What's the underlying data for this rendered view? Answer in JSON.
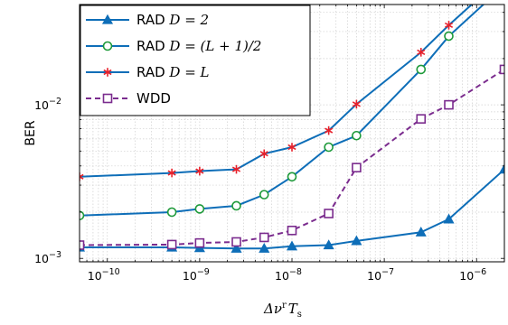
{
  "chart_data": {
    "type": "line",
    "xscale": "log",
    "yscale": "log",
    "xlim": [
      5e-11,
      2e-06
    ],
    "ylim": [
      0.00095,
      0.045
    ],
    "grid": true,
    "xlabel": "Δν^r T_s",
    "ylabel": "BER",
    "legend_position": "top-left",
    "xticks": [
      {
        "value": 1e-10,
        "label": "10^-10"
      },
      {
        "value": 1e-09,
        "label": "10^-9"
      },
      {
        "value": 1e-08,
        "label": "10^-8"
      },
      {
        "value": 1e-07,
        "label": "10^-7"
      },
      {
        "value": 1e-06,
        "label": "10^-6"
      }
    ],
    "yticks": [
      {
        "value": 0.001,
        "label": "10^-3"
      },
      {
        "value": 0.01,
        "label": "10^-2"
      }
    ],
    "series": [
      {
        "name": "RAD D = 2",
        "legend_plain": "RAD ",
        "legend_math": "D = 2",
        "color": "#0e6eb8",
        "dash": "",
        "marker": "triangle",
        "x": [
          5e-11,
          5e-10,
          1e-09,
          2.5e-09,
          5e-09,
          1e-08,
          2.5e-08,
          5e-08,
          2.5e-07,
          5e-07,
          2e-06
        ],
        "y": [
          0.00118,
          0.00118,
          0.00117,
          0.00116,
          0.00116,
          0.0012,
          0.00122,
          0.0013,
          0.00148,
          0.0018,
          0.0038
        ]
      },
      {
        "name": "RAD D = (L+1)/2",
        "legend_plain": "RAD ",
        "legend_math": "D = (L + 1)/2",
        "color": "#0e6eb8",
        "dash": "",
        "marker": "circle",
        "x": [
          5e-11,
          5e-10,
          1e-09,
          2.5e-09,
          5e-09,
          1e-08,
          2.5e-08,
          5e-08,
          2.5e-07,
          5e-07,
          2e-06
        ],
        "y": [
          0.0019,
          0.002,
          0.0021,
          0.0022,
          0.0026,
          0.0034,
          0.0053,
          0.0063,
          0.017,
          0.028,
          0.06
        ]
      },
      {
        "name": "RAD D = L",
        "legend_plain": "RAD ",
        "legend_math": "D = L",
        "color": "#0e6eb8",
        "dash": "",
        "marker": "asterisk",
        "marker_color": "#e8202a",
        "x": [
          5e-11,
          5e-10,
          1e-09,
          2.5e-09,
          5e-09,
          1e-08,
          2.5e-08,
          5e-08,
          2.5e-07,
          5e-07,
          2e-06
        ],
        "y": [
          0.0034,
          0.0036,
          0.0037,
          0.0038,
          0.0048,
          0.0053,
          0.0068,
          0.0101,
          0.022,
          0.033,
          0.07
        ]
      },
      {
        "name": "WDD",
        "legend_plain": "WDD",
        "legend_math": "",
        "color": "#7b2c8e",
        "dash": "6,4",
        "marker": "square",
        "x": [
          5e-11,
          5e-10,
          1e-09,
          2.5e-09,
          5e-09,
          1e-08,
          2.5e-08,
          5e-08,
          2.5e-07,
          5e-07,
          2e-06
        ],
        "y": [
          0.00122,
          0.00123,
          0.00126,
          0.00128,
          0.00137,
          0.00152,
          0.00196,
          0.0039,
          0.0081,
          0.01,
          0.017
        ]
      }
    ]
  }
}
